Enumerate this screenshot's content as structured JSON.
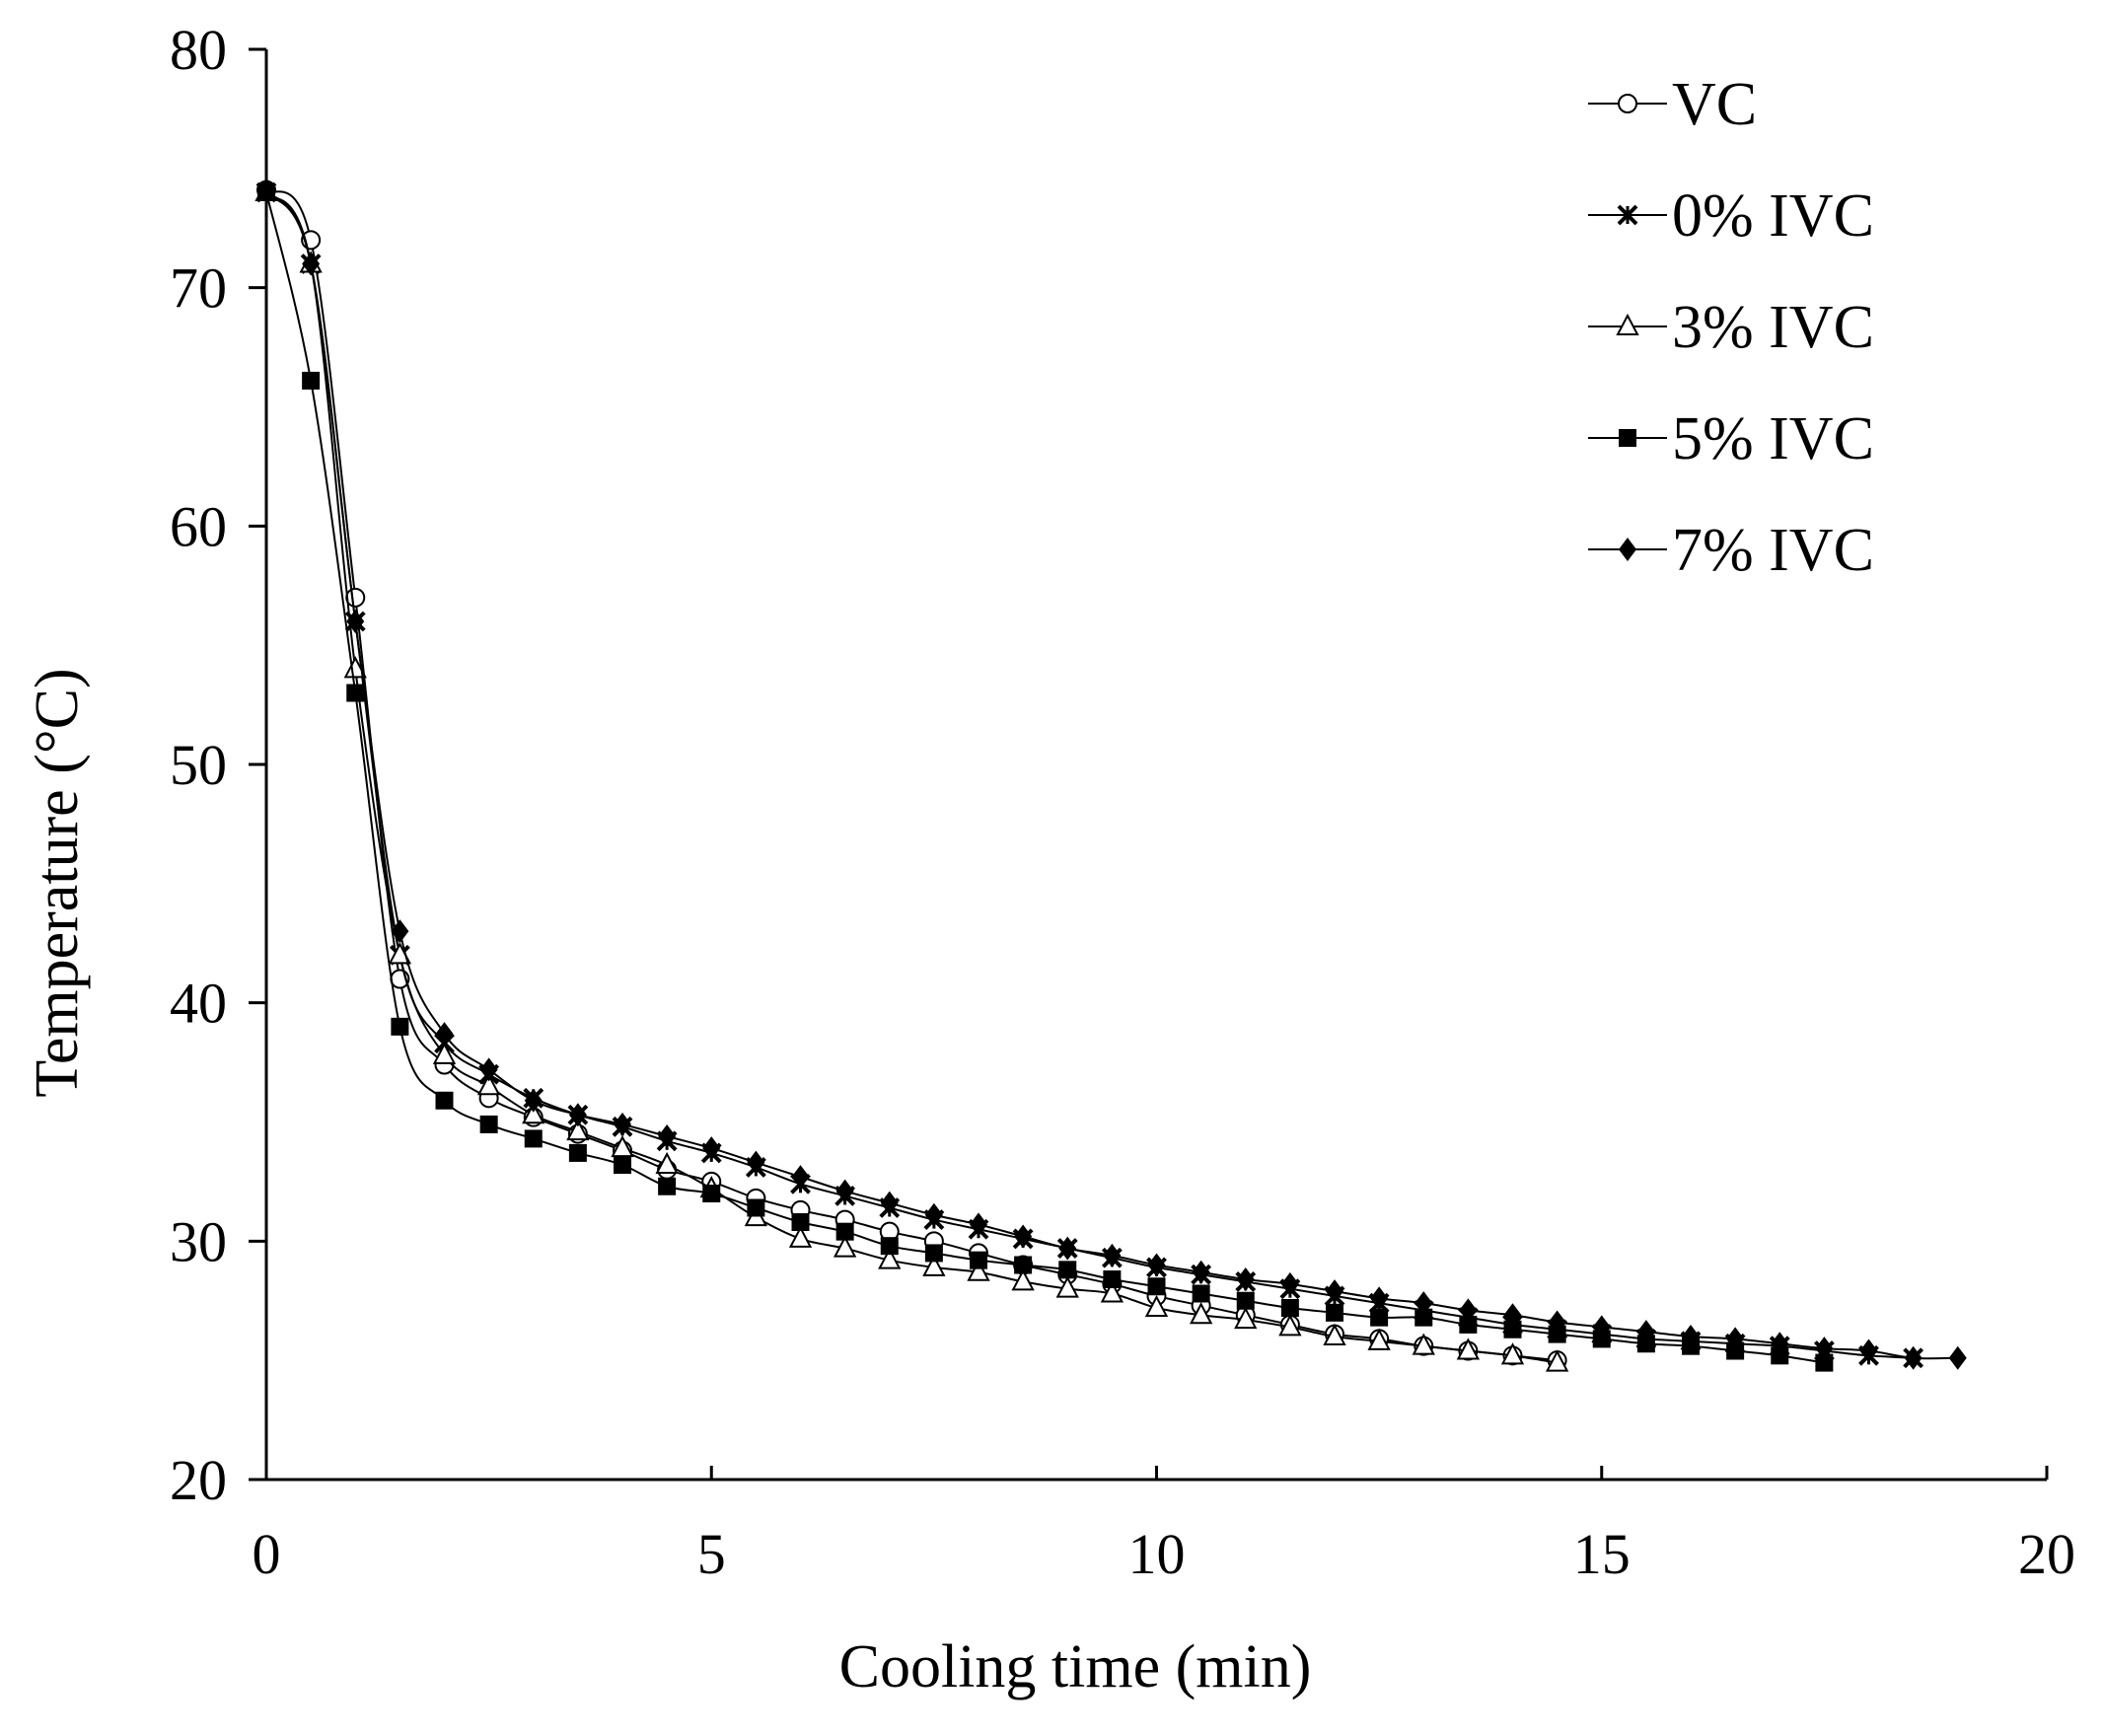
{
  "chart_data": {
    "type": "line",
    "xlabel": "Cooling time (min)",
    "ylabel": "Temperature (°C)",
    "xlim": [
      0,
      20
    ],
    "ylim": [
      20,
      80
    ],
    "xticks": [
      "0",
      "5",
      "10",
      "15",
      "20"
    ],
    "yticks": [
      "20",
      "30",
      "40",
      "50",
      "60",
      "70",
      "80"
    ],
    "grid": false,
    "legend_position": "top-right",
    "series": [
      {
        "name": "VC",
        "marker": "open-circle",
        "x": [
          0,
          0.5,
          1,
          1.5,
          2,
          2.5,
          3,
          3.5,
          4,
          4.5,
          5,
          5.5,
          6,
          6.5,
          7,
          7.5,
          8,
          8.5,
          9,
          9.5,
          10,
          10.5,
          11,
          11.5,
          12,
          12.5,
          13,
          13.5,
          14,
          14.5
        ],
        "y": [
          74.1,
          72,
          57,
          41,
          37.4,
          36,
          35.2,
          34.5,
          33.8,
          33,
          32.5,
          31.8,
          31.3,
          30.9,
          30.4,
          30,
          29.5,
          29,
          28.6,
          28.2,
          27.7,
          27.3,
          26.9,
          26.5,
          26.1,
          25.9,
          25.6,
          25.4,
          25.2,
          25
        ]
      },
      {
        "name": "0% IVC",
        "marker": "star",
        "x": [
          0,
          0.5,
          1,
          1.5,
          2,
          2.5,
          3,
          3.5,
          4,
          4.5,
          5,
          5.5,
          6,
          6.5,
          7,
          7.5,
          8,
          8.5,
          9,
          9.5,
          10,
          10.5,
          11,
          11.5,
          12,
          12.5,
          13,
          13.5,
          14,
          14.5,
          15,
          15.5,
          16,
          16.5,
          17,
          17.5,
          18,
          18.5
        ],
        "y": [
          74,
          71,
          56,
          42,
          38.3,
          37,
          36,
          35.3,
          34.8,
          34.2,
          33.7,
          33.1,
          32.4,
          31.9,
          31.4,
          30.9,
          30.5,
          30.1,
          29.7,
          29.3,
          28.9,
          28.6,
          28.3,
          28,
          27.7,
          27.4,
          27.1,
          26.8,
          26.5,
          26.3,
          26.1,
          25.9,
          25.8,
          25.7,
          25.6,
          25.4,
          25.2,
          25.1
        ]
      },
      {
        "name": "3% IVC",
        "marker": "open-triangle",
        "x": [
          0,
          0.5,
          1,
          1.5,
          2,
          2.5,
          3,
          3.5,
          4,
          4.5,
          5,
          5.5,
          6,
          6.5,
          7,
          7.5,
          8,
          8.5,
          9,
          9.5,
          10,
          10.5,
          11,
          11.5,
          12,
          12.5,
          13,
          13.5,
          14,
          14.5
        ],
        "y": [
          74,
          71,
          54,
          42,
          37.8,
          36.5,
          35.3,
          34.6,
          33.9,
          33.2,
          32.2,
          31,
          30.1,
          29.7,
          29.2,
          28.9,
          28.7,
          28.3,
          28,
          27.8,
          27.2,
          26.9,
          26.7,
          26.4,
          26,
          25.8,
          25.6,
          25.4,
          25.2,
          24.9
        ]
      },
      {
        "name": "5% IVC",
        "marker": "filled-square",
        "x": [
          0,
          0.5,
          1,
          1.5,
          2,
          2.5,
          3,
          3.5,
          4,
          4.5,
          5,
          5.5,
          6,
          6.5,
          7,
          7.5,
          8,
          8.5,
          9,
          9.5,
          10,
          10.5,
          11,
          11.5,
          12,
          12.5,
          13,
          13.5,
          14,
          14.5,
          15,
          15.5,
          16,
          16.5,
          17,
          17.5
        ],
        "y": [
          74,
          66.1,
          53,
          39,
          35.9,
          34.9,
          34.3,
          33.7,
          33.2,
          32.3,
          32,
          31.4,
          30.8,
          30.4,
          29.8,
          29.5,
          29.2,
          29,
          28.8,
          28.4,
          28.1,
          27.8,
          27.5,
          27.2,
          27,
          26.8,
          26.8,
          26.5,
          26.3,
          26.1,
          25.9,
          25.7,
          25.6,
          25.4,
          25.2,
          24.9
        ]
      },
      {
        "name": "7% IVC",
        "marker": "filled-diamond",
        "x": [
          0,
          0.5,
          1,
          1.5,
          2,
          2.5,
          3,
          3.5,
          4,
          4.5,
          5,
          5.5,
          6,
          6.5,
          7,
          7.5,
          8,
          8.5,
          9,
          9.5,
          10,
          10.5,
          11,
          11.5,
          12,
          12.5,
          13,
          13.5,
          14,
          14.5,
          15,
          15.5,
          16,
          16.5,
          17,
          17.5,
          18,
          18.5,
          19
        ],
        "y": [
          74.1,
          71,
          56,
          43,
          38.7,
          37.2,
          35.9,
          35.3,
          34.9,
          34.4,
          33.9,
          33.3,
          32.7,
          32.1,
          31.6,
          31.1,
          30.7,
          30.2,
          29.7,
          29.4,
          29,
          28.7,
          28.4,
          28.2,
          27.9,
          27.6,
          27.4,
          27.1,
          26.9,
          26.6,
          26.4,
          26.2,
          26,
          25.9,
          25.7,
          25.5,
          25.4,
          25.1,
          25.1
        ]
      }
    ]
  }
}
